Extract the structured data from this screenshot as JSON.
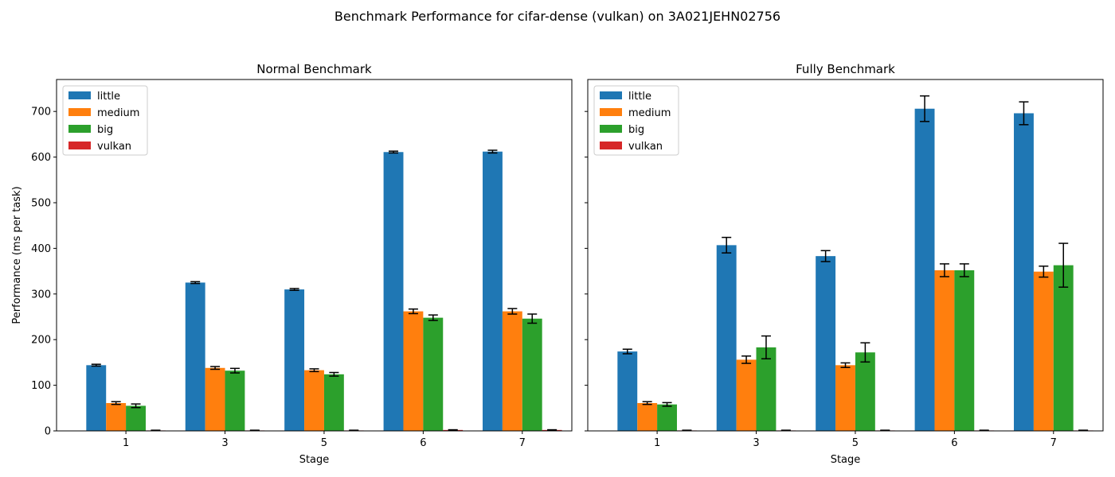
{
  "suptitle": "Benchmark Performance for cifar-dense (vulkan) on 3A021JEHN02756",
  "colors": {
    "little": "#1f77b4",
    "medium": "#ff7f0e",
    "big": "#2ca02c",
    "vulkan": "#d62728"
  },
  "chart_data": [
    {
      "type": "bar",
      "title": "Normal Benchmark",
      "xlabel": "Stage",
      "ylabel": "Performance (ms per task)",
      "categories": [
        "1",
        "3",
        "5",
        "6",
        "7"
      ],
      "ylim": [
        0,
        770
      ],
      "yticks": [
        0,
        100,
        200,
        300,
        400,
        500,
        600,
        700
      ],
      "grid": false,
      "legend_position": "upper-left",
      "series": [
        {
          "name": "little",
          "values": [
            144,
            325,
            310,
            611,
            612
          ],
          "errors": [
            2,
            2,
            2,
            2,
            3
          ]
        },
        {
          "name": "medium",
          "values": [
            61,
            138,
            133,
            262,
            262
          ],
          "errors": [
            3,
            3,
            3,
            5,
            6
          ]
        },
        {
          "name": "big",
          "values": [
            55,
            132,
            124,
            248,
            246
          ],
          "errors": [
            4,
            5,
            4,
            6,
            10
          ]
        },
        {
          "name": "vulkan",
          "values": [
            1,
            1,
            1,
            2,
            2
          ],
          "errors": [
            0.5,
            0.5,
            0.5,
            0.5,
            0.5
          ]
        }
      ]
    },
    {
      "type": "bar",
      "title": "Fully Benchmark",
      "xlabel": "Stage",
      "ylabel": "",
      "categories": [
        "1",
        "3",
        "5",
        "6",
        "7"
      ],
      "ylim": [
        0,
        770
      ],
      "yticks": [
        0,
        100,
        200,
        300,
        400,
        500,
        600,
        700
      ],
      "grid": false,
      "legend_position": "upper-left",
      "series": [
        {
          "name": "little",
          "values": [
            174,
            407,
            383,
            706,
            696
          ],
          "errors": [
            5,
            17,
            12,
            28,
            25
          ]
        },
        {
          "name": "medium",
          "values": [
            61,
            156,
            144,
            352,
            349
          ],
          "errors": [
            3,
            8,
            5,
            14,
            12
          ]
        },
        {
          "name": "big",
          "values": [
            58,
            183,
            172,
            352,
            363
          ],
          "errors": [
            4,
            25,
            21,
            14,
            48
          ]
        },
        {
          "name": "vulkan",
          "values": [
            1,
            1,
            1,
            1,
            1
          ],
          "errors": [
            0.5,
            0.5,
            0.5,
            0.5,
            0.5
          ]
        }
      ]
    }
  ]
}
